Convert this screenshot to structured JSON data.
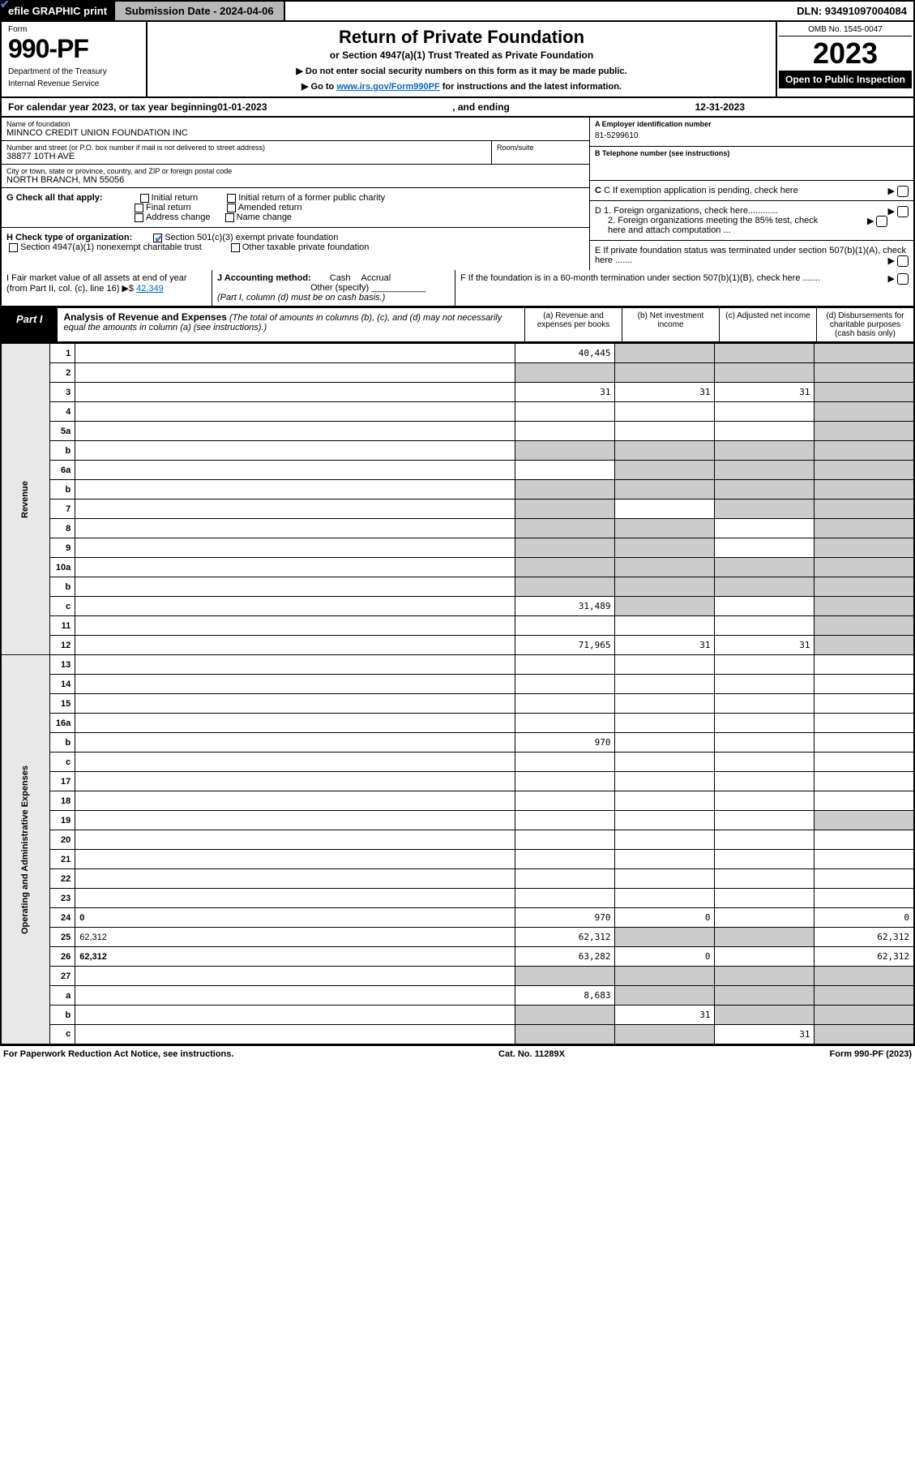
{
  "top": {
    "efile": "efile GRAPHIC print",
    "subdate_lbl": "Submission Date - 2024-04-06",
    "dln": "DLN: 93491097004084"
  },
  "header": {
    "form": "Form",
    "formno": "990-PF",
    "dept": "Department of the Treasury",
    "irs": "Internal Revenue Service",
    "title": "Return of Private Foundation",
    "subtitle": "or Section 4947(a)(1) Trust Treated as Private Foundation",
    "note1": "▶ Do not enter social security numbers on this form as it may be made public.",
    "note2_pre": "▶ Go to ",
    "note2_link": "www.irs.gov/Form990PF",
    "note2_post": " for instructions and the latest information.",
    "omb": "OMB No. 1545-0047",
    "year": "2023",
    "open": "Open to Public Inspection"
  },
  "calyear": {
    "pre": "For calendar year 2023, or tax year beginning ",
    "begin": "01-01-2023",
    "mid": ", and ending ",
    "end": "12-31-2023"
  },
  "info": {
    "name_lbl": "Name of foundation",
    "name": "MINNCO CREDIT UNION FOUNDATION INC",
    "addr_lbl": "Number and street (or P.O. box number if mail is not delivered to street address)",
    "addr": "38877 10TH AVE",
    "room_lbl": "Room/suite",
    "city_lbl": "City or town, state or province, country, and ZIP or foreign postal code",
    "city": "NORTH BRANCH, MN  55056",
    "a_lbl": "A Employer identification number",
    "a_val": "81-5299610",
    "b_lbl": "B Telephone number (see instructions)",
    "c_lbl": "C If exemption application is pending, check here",
    "d1_lbl": "D 1. Foreign organizations, check here............",
    "d2_lbl": "2. Foreign organizations meeting the 85% test, check here and attach computation ...",
    "e_lbl": "E  If private foundation status was terminated under section 507(b)(1)(A), check here .......",
    "f_lbl": "F  If the foundation is in a 60-month termination under section 507(b)(1)(B), check here .......",
    "g_lbl": "G Check all that apply:",
    "g_opts": [
      "Initial return",
      "Initial return of a former public charity",
      "Final return",
      "Amended return",
      "Address change",
      "Name change"
    ],
    "h_lbl": "H Check type of organization:",
    "h_opt1": "Section 501(c)(3) exempt private foundation",
    "h_opt2": "Section 4947(a)(1) nonexempt charitable trust",
    "h_opt3": "Other taxable private foundation",
    "i_lbl": "I Fair market value of all assets at end of year (from Part II, col. (c), line 16) ▶$ ",
    "i_val": "42,349",
    "j_lbl": "J Accounting method:",
    "j_cash": "Cash",
    "j_accrual": "Accrual",
    "j_other": "Other (specify)",
    "j_note": "(Part I, column (d) must be on cash basis.)"
  },
  "part1": {
    "label": "Part I",
    "title": "Analysis of Revenue and Expenses",
    "title_note": " (The total of amounts in columns (b), (c), and (d) may not necessarily equal the amounts in column (a) (see instructions).)",
    "col_a": "(a)   Revenue and expenses per books",
    "col_b": "(b)   Net investment income",
    "col_c": "(c)   Adjusted net income",
    "col_d": "(d)   Disbursements for charitable purposes (cash basis only)"
  },
  "vtabs": {
    "rev": "Revenue",
    "exp": "Operating and Administrative Expenses"
  },
  "rows": [
    {
      "n": "1",
      "d": "",
      "a": "40,445",
      "b": "",
      "c": "",
      "bgray": 1,
      "cgray": 1,
      "dgray": 1
    },
    {
      "n": "2",
      "d": "",
      "a": "",
      "b": "",
      "c": "",
      "agray": 1,
      "bgray": 1,
      "cgray": 1,
      "dgray": 1
    },
    {
      "n": "3",
      "d": "",
      "a": "31",
      "b": "31",
      "c": "31",
      "dgray": 1
    },
    {
      "n": "4",
      "d": "",
      "a": "",
      "b": "",
      "c": "",
      "dgray": 1
    },
    {
      "n": "5a",
      "d": "",
      "a": "",
      "b": "",
      "c": "",
      "dgray": 1
    },
    {
      "n": "b",
      "d": "",
      "a": "",
      "b": "",
      "c": "",
      "agray": 1,
      "bgray": 1,
      "cgray": 1,
      "dgray": 1
    },
    {
      "n": "6a",
      "d": "",
      "a": "",
      "b": "",
      "c": "",
      "bgray": 1,
      "cgray": 1,
      "dgray": 1
    },
    {
      "n": "b",
      "d": "",
      "a": "",
      "b": "",
      "c": "",
      "agray": 1,
      "bgray": 1,
      "cgray": 1,
      "dgray": 1
    },
    {
      "n": "7",
      "d": "",
      "a": "",
      "b": "",
      "c": "",
      "agray": 1,
      "cgray": 1,
      "dgray": 1
    },
    {
      "n": "8",
      "d": "",
      "a": "",
      "b": "",
      "c": "",
      "agray": 1,
      "bgray": 1,
      "dgray": 1
    },
    {
      "n": "9",
      "d": "",
      "a": "",
      "b": "",
      "c": "",
      "agray": 1,
      "bgray": 1,
      "dgray": 1
    },
    {
      "n": "10a",
      "d": "",
      "a": "",
      "b": "",
      "c": "",
      "agray": 1,
      "bgray": 1,
      "cgray": 1,
      "dgray": 1
    },
    {
      "n": "b",
      "d": "",
      "a": "",
      "b": "",
      "c": "",
      "agray": 1,
      "bgray": 1,
      "cgray": 1,
      "dgray": 1
    },
    {
      "n": "c",
      "d": "",
      "a": "31,489",
      "b": "",
      "c": "",
      "bgray": 1,
      "dgray": 1
    },
    {
      "n": "11",
      "d": "",
      "a": "",
      "b": "",
      "c": "",
      "dgray": 1
    },
    {
      "n": "12",
      "d": "",
      "a": "71,965",
      "b": "31",
      "c": "31",
      "bold": 1,
      "dgray": 1
    },
    {
      "n": "13",
      "d": "",
      "a": "",
      "b": "",
      "c": ""
    },
    {
      "n": "14",
      "d": "",
      "a": "",
      "b": "",
      "c": ""
    },
    {
      "n": "15",
      "d": "",
      "a": "",
      "b": "",
      "c": ""
    },
    {
      "n": "16a",
      "d": "",
      "a": "",
      "b": "",
      "c": ""
    },
    {
      "n": "b",
      "d": "",
      "a": "970",
      "b": "",
      "c": ""
    },
    {
      "n": "c",
      "d": "",
      "a": "",
      "b": "",
      "c": ""
    },
    {
      "n": "17",
      "d": "",
      "a": "",
      "b": "",
      "c": ""
    },
    {
      "n": "18",
      "d": "",
      "a": "",
      "b": "",
      "c": ""
    },
    {
      "n": "19",
      "d": "",
      "a": "",
      "b": "",
      "c": "",
      "dgray": 1
    },
    {
      "n": "20",
      "d": "",
      "a": "",
      "b": "",
      "c": ""
    },
    {
      "n": "21",
      "d": "",
      "a": "",
      "b": "",
      "c": ""
    },
    {
      "n": "22",
      "d": "",
      "a": "",
      "b": "",
      "c": ""
    },
    {
      "n": "23",
      "d": "",
      "a": "",
      "b": "",
      "c": ""
    },
    {
      "n": "24",
      "d": "0",
      "a": "970",
      "b": "0",
      "c": "",
      "bold": 1
    },
    {
      "n": "25",
      "d": "62,312",
      "a": "62,312",
      "b": "",
      "c": "",
      "bgray": 1,
      "cgray": 1
    },
    {
      "n": "26",
      "d": "62,312",
      "a": "63,282",
      "b": "0",
      "c": "",
      "bold": 1
    },
    {
      "n": "27",
      "d": "",
      "a": "",
      "b": "",
      "c": "",
      "agray": 1,
      "bgray": 1,
      "cgray": 1,
      "dgray": 1
    },
    {
      "n": "a",
      "d": "",
      "a": "8,683",
      "b": "",
      "c": "",
      "bold": 1,
      "bgray": 1,
      "cgray": 1,
      "dgray": 1
    },
    {
      "n": "b",
      "d": "",
      "a": "",
      "b": "31",
      "c": "",
      "bold": 1,
      "agray": 1,
      "cgray": 1,
      "dgray": 1
    },
    {
      "n": "c",
      "d": "",
      "a": "",
      "b": "",
      "c": "31",
      "bold": 1,
      "agray": 1,
      "bgray": 1,
      "dgray": 1
    }
  ],
  "footer": {
    "left": "For Paperwork Reduction Act Notice, see instructions.",
    "mid": "Cat. No. 11289X",
    "right": "Form 990-PF (2023)"
  }
}
